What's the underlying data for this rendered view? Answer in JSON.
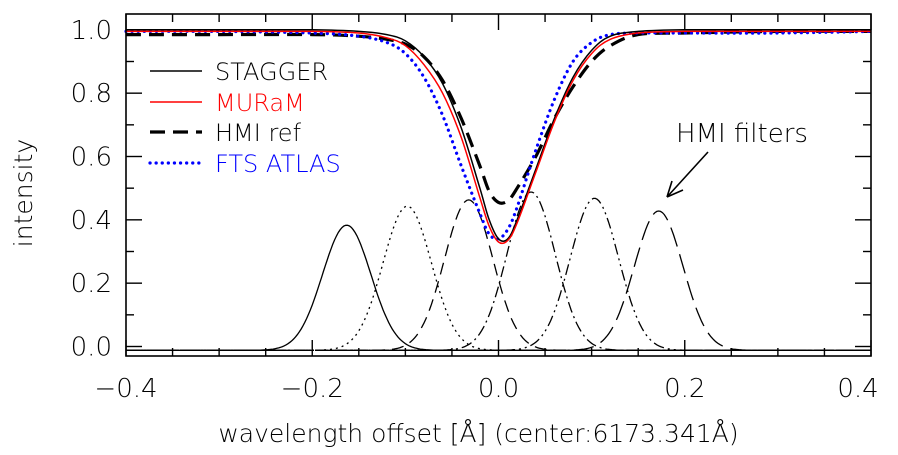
{
  "chart_data": {
    "type": "line",
    "xlabel": "wavelength offset [Å] (center:6173.341Å)",
    "ylabel": "intensity",
    "xlim": [
      -0.4,
      0.4
    ],
    "ylim": [
      -0.03,
      1.05
    ],
    "x_ticks": [
      -0.4,
      -0.2,
      0.0,
      0.2,
      0.4
    ],
    "x_tick_labels": [
      "−0.4",
      "−0.2",
      "0.0",
      "0.2",
      "0.4"
    ],
    "y_ticks": [
      0.0,
      0.2,
      0.4,
      0.6,
      0.8,
      1.0
    ],
    "y_tick_labels": [
      "0.0",
      "0.2",
      "0.4",
      "0.6",
      "0.8",
      "1.0"
    ],
    "legend_position": "top-left",
    "series": [
      {
        "name": "STAGGER",
        "color": "#000000",
        "dash": "solid",
        "x": [
          -0.4,
          -0.3,
          -0.2,
          -0.15,
          -0.12,
          -0.1,
          -0.08,
          -0.06,
          -0.04,
          -0.02,
          -0.01,
          0.0,
          0.01,
          0.02,
          0.04,
          0.06,
          0.08,
          0.1,
          0.12,
          0.15,
          0.2,
          0.3,
          0.4
        ],
        "y": [
          1.0,
          1.0,
          1.0,
          0.995,
          0.985,
          0.965,
          0.915,
          0.83,
          0.69,
          0.5,
          0.4,
          0.34,
          0.34,
          0.4,
          0.56,
          0.72,
          0.85,
          0.935,
          0.98,
          0.995,
          1.0,
          1.0,
          1.0
        ]
      },
      {
        "name": "MURaM",
        "color": "#ff0000",
        "dash": "solid",
        "x": [
          -0.4,
          -0.3,
          -0.2,
          -0.15,
          -0.12,
          -0.1,
          -0.08,
          -0.06,
          -0.04,
          -0.02,
          -0.01,
          0.0,
          0.01,
          0.02,
          0.04,
          0.06,
          0.08,
          0.1,
          0.12,
          0.15,
          0.2,
          0.3,
          0.4
        ],
        "y": [
          0.995,
          0.995,
          0.995,
          0.99,
          0.975,
          0.95,
          0.89,
          0.8,
          0.66,
          0.47,
          0.38,
          0.33,
          0.335,
          0.39,
          0.55,
          0.71,
          0.84,
          0.925,
          0.97,
          0.99,
          0.995,
          0.995,
          0.995
        ]
      },
      {
        "name": "HMI ref",
        "color": "#000000",
        "dash": "heavy-dash",
        "x": [
          -0.4,
          -0.3,
          -0.2,
          -0.15,
          -0.12,
          -0.1,
          -0.08,
          -0.06,
          -0.04,
          -0.02,
          -0.01,
          0.0,
          0.01,
          0.02,
          0.04,
          0.06,
          0.08,
          0.1,
          0.12,
          0.15,
          0.2,
          0.3,
          0.4
        ],
        "y": [
          0.985,
          0.985,
          0.985,
          0.98,
          0.97,
          0.955,
          0.915,
          0.84,
          0.72,
          0.57,
          0.49,
          0.455,
          0.46,
          0.5,
          0.6,
          0.72,
          0.82,
          0.9,
          0.95,
          0.985,
          0.99,
          0.995,
          0.995
        ]
      },
      {
        "name": "FTS ATLAS",
        "color": "#0000ff",
        "dash": "dotted",
        "x": [
          -0.4,
          -0.3,
          -0.2,
          -0.15,
          -0.12,
          -0.1,
          -0.08,
          -0.06,
          -0.04,
          -0.02,
          -0.01,
          0.0,
          0.01,
          0.02,
          0.04,
          0.06,
          0.08,
          0.1,
          0.12,
          0.15,
          0.2,
          0.3,
          0.4
        ],
        "y": [
          0.995,
          0.995,
          0.99,
          0.98,
          0.96,
          0.925,
          0.85,
          0.73,
          0.57,
          0.42,
          0.355,
          0.34,
          0.37,
          0.44,
          0.62,
          0.78,
          0.9,
          0.96,
          0.985,
          0.99,
          0.99,
          0.99,
          0.995
        ]
      }
    ],
    "filters": [
      {
        "center": -0.163,
        "peak": 0.395,
        "dash": "solid"
      },
      {
        "center": -0.098,
        "peak": 0.455,
        "dash": "dotted"
      },
      {
        "center": -0.032,
        "peak": 0.475,
        "dash": "dashed"
      },
      {
        "center": 0.035,
        "peak": 0.5,
        "dash": "dash-dot"
      },
      {
        "center": 0.103,
        "peak": 0.48,
        "dash": "dash-dot-dot"
      },
      {
        "center": 0.172,
        "peak": 0.44,
        "dash": "long-dash"
      }
    ],
    "annotation": {
      "text": "HMI filters",
      "x": 0.18,
      "y": 0.6
    }
  }
}
